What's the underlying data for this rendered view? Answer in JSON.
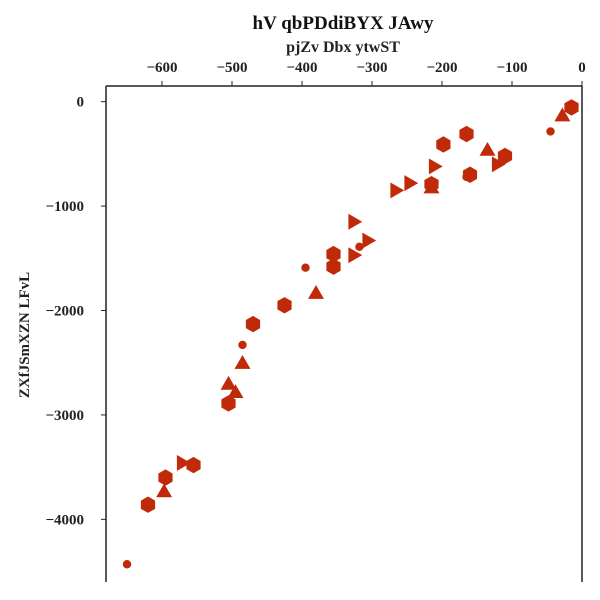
{
  "chart_data": {
    "type": "scatter",
    "title": "hV qbPDdiBYX JAwy",
    "subtitle": "pjZv Dbx ytwST",
    "xlabel": "",
    "ylabel": "ZXfJSmXZN LFvL",
    "x_axis_position": "top",
    "xlim": [
      -680,
      0
    ],
    "ylim": [
      -4600,
      150
    ],
    "xticks": [
      -600,
      -500,
      -400,
      -300,
      -200,
      -100,
      0
    ],
    "yticks": [
      0,
      -1000,
      -2000,
      -3000,
      -4000
    ],
    "xtick_labels": [
      "−600",
      "−500",
      "−400",
      "−300",
      "−200",
      "−100",
      "0"
    ],
    "ytick_labels": [
      "0",
      "−1000",
      "−2000",
      "−3000",
      "−4000"
    ],
    "grid": false,
    "legend": "none",
    "color": "#c02a08",
    "series": [
      {
        "marker": "hexagon",
        "points": [
          {
            "x": -15,
            "y": -55
          },
          {
            "x": -165,
            "y": -310
          },
          {
            "x": -198,
            "y": -410
          },
          {
            "x": -110,
            "y": -520
          },
          {
            "x": -160,
            "y": -700
          },
          {
            "x": -215,
            "y": -790
          },
          {
            "x": -355,
            "y": -1460
          },
          {
            "x": -355,
            "y": -1580
          },
          {
            "x": -425,
            "y": -1950
          },
          {
            "x": -470,
            "y": -2130
          },
          {
            "x": -505,
            "y": -2890
          },
          {
            "x": -555,
            "y": -3480
          },
          {
            "x": -595,
            "y": -3600
          },
          {
            "x": -620,
            "y": -3860
          }
        ]
      },
      {
        "marker": "triangle-up",
        "points": [
          {
            "x": -28,
            "y": -130
          },
          {
            "x": -135,
            "y": -460
          },
          {
            "x": -215,
            "y": -820
          },
          {
            "x": -380,
            "y": -1830
          },
          {
            "x": -485,
            "y": -2500
          },
          {
            "x": -505,
            "y": -2700
          },
          {
            "x": -495,
            "y": -2780
          },
          {
            "x": -597,
            "y": -3730
          }
        ]
      },
      {
        "marker": "triangle-right",
        "points": [
          {
            "x": -120,
            "y": -600
          },
          {
            "x": -210,
            "y": -620
          },
          {
            "x": -245,
            "y": -780
          },
          {
            "x": -265,
            "y": -850
          },
          {
            "x": -325,
            "y": -1150
          },
          {
            "x": -305,
            "y": -1330
          },
          {
            "x": -325,
            "y": -1470
          },
          {
            "x": -570,
            "y": -3460
          }
        ]
      },
      {
        "marker": "circle",
        "points": [
          {
            "x": -45,
            "y": -285
          },
          {
            "x": -165,
            "y": -720
          },
          {
            "x": -318,
            "y": -1390
          },
          {
            "x": -395,
            "y": -1590
          },
          {
            "x": -485,
            "y": -2330
          },
          {
            "x": -650,
            "y": -4430
          }
        ]
      }
    ]
  }
}
